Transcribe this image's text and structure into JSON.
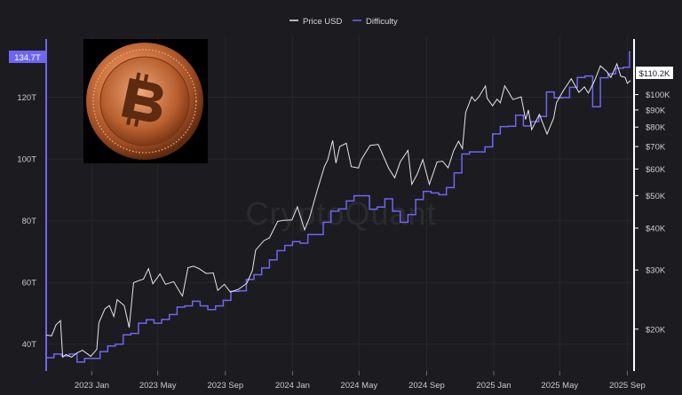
{
  "chart_data": {
    "type": "line",
    "title": "",
    "xlabel": "",
    "ylabel": "",
    "watermark": "CryptoQuant",
    "legend": {
      "placement": "top-center"
    },
    "x_range": [
      "2022-10-10",
      "2025-09-10"
    ],
    "x_ticks": [
      {
        "date": "2023-01-01",
        "label": "2023 Jan"
      },
      {
        "date": "2023-05-01",
        "label": "2023 May"
      },
      {
        "date": "2023-09-01",
        "label": "2023 Sep"
      },
      {
        "date": "2024-01-01",
        "label": "2024 Jan"
      },
      {
        "date": "2024-05-01",
        "label": "2024 May"
      },
      {
        "date": "2024-09-01",
        "label": "2024 Sep"
      },
      {
        "date": "2025-01-01",
        "label": "2025 Jan"
      },
      {
        "date": "2025-05-01",
        "label": "2025 May"
      },
      {
        "date": "2025-09-01",
        "label": "2025 Sep"
      }
    ],
    "left_axis": {
      "series": "Difficulty",
      "scale": "linear",
      "range_T": [
        31.3,
        140
      ],
      "ticks": [
        {
          "value": 40,
          "label": "40T"
        },
        {
          "value": 60,
          "label": "60T"
        },
        {
          "value": 80,
          "label": "80T"
        },
        {
          "value": 100,
          "label": "100T"
        },
        {
          "value": 120,
          "label": "120T"
        }
      ],
      "current_label": "134.7T",
      "current_value": 134.7,
      "color": "#7b73ff"
    },
    "right_axis": {
      "series": "Price USD",
      "scale": "log",
      "range_usd": [
        15000,
        150000
      ],
      "ticks": [
        {
          "value": 20000,
          "label": "$20K"
        },
        {
          "value": 30000,
          "label": "$30K"
        },
        {
          "value": 40000,
          "label": "$40K"
        },
        {
          "value": 50000,
          "label": "$50K"
        },
        {
          "value": 60000,
          "label": "$60K"
        },
        {
          "value": 70000,
          "label": "$70K"
        },
        {
          "value": 80000,
          "label": "$80K"
        },
        {
          "value": 90000,
          "label": "$90K"
        },
        {
          "value": 100000,
          "label": "$100K"
        }
      ],
      "current_label": "$110.2K",
      "current_value": 110200,
      "color": "#ffffff"
    },
    "series": [
      {
        "name": "Price USD",
        "axis": "right",
        "color": "#e6e6ea",
        "points": [
          [
            "2022-10-10",
            19200
          ],
          [
            "2022-10-20",
            19100
          ],
          [
            "2022-10-28",
            20600
          ],
          [
            "2022-11-05",
            21200
          ],
          [
            "2022-11-09",
            16500
          ],
          [
            "2022-11-15",
            16800
          ],
          [
            "2022-11-25",
            16500
          ],
          [
            "2022-12-05",
            17000
          ],
          [
            "2022-12-15",
            17300
          ],
          [
            "2022-12-30",
            16600
          ],
          [
            "2023-01-10",
            17400
          ],
          [
            "2023-01-14",
            20900
          ],
          [
            "2023-01-25",
            23000
          ],
          [
            "2023-02-02",
            23500
          ],
          [
            "2023-02-10",
            21800
          ],
          [
            "2023-02-16",
            24500
          ],
          [
            "2023-03-01",
            23500
          ],
          [
            "2023-03-10",
            20200
          ],
          [
            "2023-03-18",
            27500
          ],
          [
            "2023-03-25",
            27800
          ],
          [
            "2023-04-05",
            28200
          ],
          [
            "2023-04-14",
            30300
          ],
          [
            "2023-04-22",
            27300
          ],
          [
            "2023-05-05",
            29200
          ],
          [
            "2023-05-15",
            27200
          ],
          [
            "2023-05-30",
            27700
          ],
          [
            "2023-06-10",
            25800
          ],
          [
            "2023-06-15",
            25100
          ],
          [
            "2023-06-25",
            30500
          ],
          [
            "2023-07-05",
            30800
          ],
          [
            "2023-07-15",
            30300
          ],
          [
            "2023-07-28",
            29300
          ],
          [
            "2023-08-10",
            29400
          ],
          [
            "2023-08-18",
            26100
          ],
          [
            "2023-08-30",
            27200
          ],
          [
            "2023-09-10",
            25800
          ],
          [
            "2023-09-25",
            26300
          ],
          [
            "2023-10-10",
            27400
          ],
          [
            "2023-10-20",
            29900
          ],
          [
            "2023-10-26",
            34400
          ],
          [
            "2023-11-10",
            36700
          ],
          [
            "2023-11-20",
            37400
          ],
          [
            "2023-12-05",
            41900
          ],
          [
            "2023-12-15",
            42200
          ],
          [
            "2023-12-31",
            42300
          ],
          [
            "2024-01-10",
            46300
          ],
          [
            "2024-01-23",
            39500
          ],
          [
            "2024-02-01",
            43000
          ],
          [
            "2024-02-15",
            51800
          ],
          [
            "2024-02-28",
            61000
          ],
          [
            "2024-03-05",
            63800
          ],
          [
            "2024-03-14",
            73000
          ],
          [
            "2024-03-20",
            62500
          ],
          [
            "2024-03-27",
            70000
          ],
          [
            "2024-04-08",
            71600
          ],
          [
            "2024-04-17",
            61000
          ],
          [
            "2024-04-30",
            60400
          ],
          [
            "2024-05-05",
            64000
          ],
          [
            "2024-05-21",
            70500
          ],
          [
            "2024-06-05",
            71000
          ],
          [
            "2024-06-24",
            60300
          ],
          [
            "2024-07-05",
            56500
          ],
          [
            "2024-07-15",
            63000
          ],
          [
            "2024-07-29",
            68200
          ],
          [
            "2024-08-05",
            54000
          ],
          [
            "2024-08-15",
            58000
          ],
          [
            "2024-08-25",
            64000
          ],
          [
            "2024-09-06",
            54000
          ],
          [
            "2024-09-20",
            63000
          ],
          [
            "2024-09-30",
            63300
          ],
          [
            "2024-10-10",
            60500
          ],
          [
            "2024-10-20",
            68000
          ],
          [
            "2024-10-29",
            72600
          ],
          [
            "2024-11-05",
            69000
          ],
          [
            "2024-11-11",
            88500
          ],
          [
            "2024-11-22",
            98500
          ],
          [
            "2024-11-28",
            95600
          ],
          [
            "2024-12-05",
            98500
          ],
          [
            "2024-12-17",
            106100
          ],
          [
            "2024-12-20",
            97500
          ],
          [
            "2024-12-30",
            92600
          ],
          [
            "2025-01-07",
            96900
          ],
          [
            "2025-01-13",
            94500
          ],
          [
            "2025-01-21",
            106100
          ],
          [
            "2025-01-27",
            102300
          ],
          [
            "2025-02-05",
            96600
          ],
          [
            "2025-02-20",
            98400
          ],
          [
            "2025-02-28",
            84300
          ],
          [
            "2025-03-05",
            90000
          ],
          [
            "2025-03-11",
            78600
          ],
          [
            "2025-03-25",
            87300
          ],
          [
            "2025-04-08",
            76300
          ],
          [
            "2025-04-20",
            85100
          ],
          [
            "2025-04-25",
            94500
          ],
          [
            "2025-05-08",
            103000
          ],
          [
            "2025-05-22",
            111500
          ],
          [
            "2025-06-05",
            101600
          ],
          [
            "2025-06-15",
            105400
          ],
          [
            "2025-06-22",
            101000
          ],
          [
            "2025-07-03",
            109600
          ],
          [
            "2025-07-14",
            121800
          ],
          [
            "2025-07-25",
            117400
          ],
          [
            "2025-08-02",
            112500
          ],
          [
            "2025-08-13",
            123500
          ],
          [
            "2025-08-20",
            113500
          ],
          [
            "2025-08-28",
            112500
          ],
          [
            "2025-09-01",
            108000
          ],
          [
            "2025-09-07",
            110200
          ]
        ]
      },
      {
        "name": "Difficulty",
        "axis": "left",
        "color": "#6e66f0",
        "points": [
          [
            "2022-10-10",
            35.6
          ],
          [
            "2022-10-24",
            36.8
          ],
          [
            "2022-11-07",
            36.2
          ],
          [
            "2022-11-21",
            36.8
          ],
          [
            "2022-12-05",
            34.2
          ],
          [
            "2022-12-19",
            35.4
          ],
          [
            "2023-01-02",
            35.4
          ],
          [
            "2023-01-16",
            37.6
          ],
          [
            "2023-01-30",
            39.4
          ],
          [
            "2023-02-13",
            40.0
          ],
          [
            "2023-02-27",
            43.0
          ],
          [
            "2023-03-13",
            43.5
          ],
          [
            "2023-03-27",
            46.8
          ],
          [
            "2023-04-10",
            47.9
          ],
          [
            "2023-04-24",
            46.8
          ],
          [
            "2023-05-08",
            48.0
          ],
          [
            "2023-05-22",
            49.6
          ],
          [
            "2023-06-05",
            52.0
          ],
          [
            "2023-06-19",
            52.4
          ],
          [
            "2023-07-03",
            53.9
          ],
          [
            "2023-07-17",
            52.4
          ],
          [
            "2023-07-31",
            51.2
          ],
          [
            "2023-08-14",
            52.4
          ],
          [
            "2023-08-28",
            54.2
          ],
          [
            "2023-09-11",
            57.1
          ],
          [
            "2023-09-25",
            57.3
          ],
          [
            "2023-10-09",
            61.0
          ],
          [
            "2023-10-23",
            62.5
          ],
          [
            "2023-11-06",
            64.7
          ],
          [
            "2023-11-20",
            67.3
          ],
          [
            "2023-12-04",
            70.3
          ],
          [
            "2023-12-18",
            72.0
          ],
          [
            "2024-01-01",
            73.2
          ],
          [
            "2024-01-15",
            72.7
          ],
          [
            "2024-01-29",
            75.5
          ],
          [
            "2024-02-12",
            75.5
          ],
          [
            "2024-02-26",
            79.5
          ],
          [
            "2024-03-11",
            83.1
          ],
          [
            "2024-03-25",
            83.8
          ],
          [
            "2024-04-08",
            86.4
          ],
          [
            "2024-04-22",
            88.1
          ],
          [
            "2024-05-06",
            88.1
          ],
          [
            "2024-05-20",
            83.7
          ],
          [
            "2024-06-03",
            84.4
          ],
          [
            "2024-06-17",
            87.1
          ],
          [
            "2024-07-01",
            83.1
          ],
          [
            "2024-07-15",
            79.5
          ],
          [
            "2024-07-29",
            82.0
          ],
          [
            "2024-08-12",
            86.9
          ],
          [
            "2024-08-26",
            89.5
          ],
          [
            "2024-09-09",
            89.0
          ],
          [
            "2024-09-23",
            88.4
          ],
          [
            "2024-10-07",
            90.7
          ],
          [
            "2024-10-21",
            95.5
          ],
          [
            "2024-11-04",
            101.6
          ],
          [
            "2024-11-18",
            102.3
          ],
          [
            "2024-12-02",
            102.3
          ],
          [
            "2024-12-16",
            103.9
          ],
          [
            "2024-12-30",
            108.1
          ],
          [
            "2025-01-13",
            110.5
          ],
          [
            "2025-01-27",
            110.6
          ],
          [
            "2025-02-10",
            114.2
          ],
          [
            "2025-02-24",
            110.7
          ],
          [
            "2025-03-10",
            112.1
          ],
          [
            "2025-03-24",
            113.8
          ],
          [
            "2025-04-07",
            121.7
          ],
          [
            "2025-04-21",
            119.8
          ],
          [
            "2025-05-05",
            119.9
          ],
          [
            "2025-05-19",
            123.2
          ],
          [
            "2025-06-02",
            126.4
          ],
          [
            "2025-06-16",
            126.9
          ],
          [
            "2025-06-30",
            116.9
          ],
          [
            "2025-07-14",
            126.3
          ],
          [
            "2025-07-28",
            127.6
          ],
          [
            "2025-08-11",
            129.4
          ],
          [
            "2025-08-25",
            129.7
          ],
          [
            "2025-09-05",
            134.7
          ]
        ]
      }
    ]
  }
}
